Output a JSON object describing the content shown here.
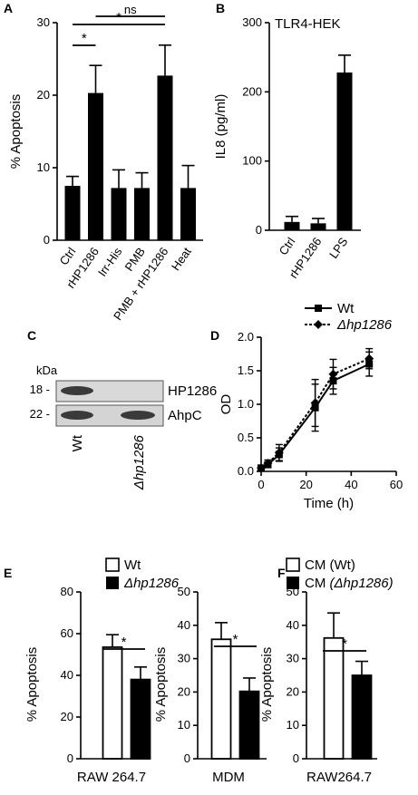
{
  "panels": {
    "A": "A",
    "B": "B",
    "C": "C",
    "D": "D",
    "E": "E",
    "F": "F"
  },
  "chart_data": [
    {
      "id": "A",
      "type": "bar",
      "ylabel": "% Apoptosis",
      "ylim": [
        0,
        30
      ],
      "yticks": [
        0,
        10,
        20,
        30
      ],
      "categories": [
        "Ctrl",
        "rHP1286",
        "Irr-His",
        "PMB",
        "PMB + rHP1286",
        "Heat"
      ],
      "values": [
        7.5,
        20.3,
        7.2,
        7.2,
        22.7,
        7.2
      ],
      "errors": [
        1.3,
        3.8,
        2.5,
        2.1,
        4.2,
        3.1
      ],
      "significance": [
        {
          "from": 0,
          "to": 1,
          "label": "*"
        },
        {
          "from": 0,
          "to": 4,
          "label": "*"
        },
        {
          "from": 1,
          "to": 4,
          "label": "ns"
        }
      ]
    },
    {
      "id": "B",
      "type": "bar",
      "title": "TLR4-HEK",
      "ylabel": "IL8 (pg/ml)",
      "ylim": [
        0,
        300
      ],
      "yticks": [
        0,
        100,
        200,
        300
      ],
      "categories": [
        "Ctrl",
        "rHP1286",
        "LPS"
      ],
      "values": [
        12,
        10,
        228
      ],
      "errors": [
        8,
        7,
        25
      ]
    },
    {
      "id": "C",
      "type": "blot",
      "kda_label": "kDa",
      "markers": [
        "18 -",
        "22 -"
      ],
      "bands": [
        "HP1286",
        "AhpC"
      ],
      "lanes": [
        "Wt",
        "Δhp1286"
      ]
    },
    {
      "id": "D",
      "type": "line",
      "xlabel": "Time (h)",
      "ylabel": "OD",
      "xlim": [
        0,
        60
      ],
      "ylim": [
        0,
        2.0
      ],
      "xticks": [
        0,
        20,
        40,
        60
      ],
      "yticks": [
        "0.0",
        "0.5",
        "1.0",
        "1.5",
        "2.0"
      ],
      "x": [
        0,
        3,
        8,
        24,
        32,
        48
      ],
      "series": [
        {
          "name": "Wt",
          "values": [
            0.05,
            0.1,
            0.25,
            0.95,
            1.35,
            1.6
          ],
          "errors": [
            0.03,
            0.04,
            0.1,
            0.35,
            0.2,
            0.18
          ]
        },
        {
          "name": "Δhp1286",
          "values": [
            0.05,
            0.12,
            0.28,
            1.02,
            1.45,
            1.68
          ],
          "errors": [
            0.03,
            0.05,
            0.12,
            0.35,
            0.22,
            0.15
          ]
        }
      ]
    },
    {
      "id": "E",
      "type": "bar",
      "legend": [
        "Wt",
        "Δhp1286"
      ],
      "subcharts": [
        {
          "xlabel": "RAW 264.7",
          "ylabel": "% Apoptosis",
          "ylim": [
            0,
            80
          ],
          "yticks": [
            0,
            20,
            40,
            60,
            80
          ],
          "values": [
            53.5,
            38
          ],
          "errors": [
            6,
            6
          ],
          "sig": "*"
        },
        {
          "xlabel": "MDM",
          "ylabel": "% Apoptosis",
          "ylim": [
            0,
            50
          ],
          "yticks": [
            0,
            10,
            20,
            30,
            40,
            50
          ],
          "values": [
            35.8,
            20.2
          ],
          "errors": [
            5,
            4
          ],
          "sig": "*"
        }
      ]
    },
    {
      "id": "F",
      "type": "bar",
      "legend": [
        "CM (Wt)",
        "CM (Δhp1286)"
      ],
      "xlabel": "RAW264.7",
      "ylabel": "% Apoptosis",
      "ylim": [
        0,
        50
      ],
      "yticks": [
        0,
        10,
        20,
        30,
        40,
        50
      ],
      "values": [
        36.2,
        25
      ],
      "errors": [
        7.5,
        4.2
      ],
      "sig": "*"
    }
  ]
}
